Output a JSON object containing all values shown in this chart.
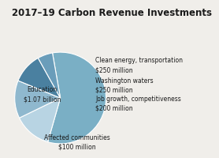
{
  "title": "2017–19 Carbon Revenue Investments",
  "slices": [
    {
      "label": "Education\n$1.07 billion",
      "value": 1070,
      "color": "#7aafc5"
    },
    {
      "label": "Clean energy, transportation\n$250 million",
      "value": 250,
      "color": "#b8d4e3"
    },
    {
      "label": "Washington waters\n$250 million",
      "value": 250,
      "color": "#8fb8ce"
    },
    {
      "label": "Job growth, competitiveness\n$200 million",
      "value": 200,
      "color": "#4a80a0"
    },
    {
      "label": "Affected communities\n$100 million",
      "value": 100,
      "color": "#6a9dba"
    }
  ],
  "bg_color": "#f0eeea",
  "title_fontsize": 8.5,
  "label_fontsize": 5.5,
  "wedge_edge_color": "white",
  "wedge_linewidth": 0.8,
  "startangle": 100
}
